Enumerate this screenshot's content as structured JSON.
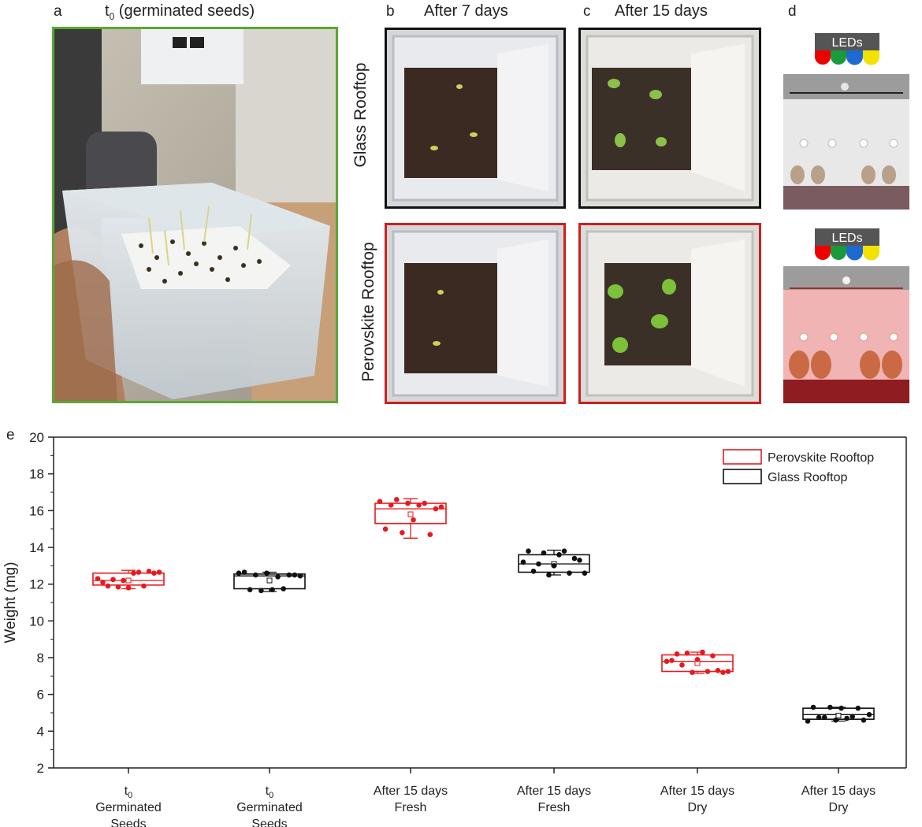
{
  "panels": {
    "a": {
      "letter": "a",
      "title_t": "t",
      "title_sub": "0",
      "title_rest": " (germinated seeds)"
    },
    "b": {
      "letter": "b",
      "title": "After 7 days"
    },
    "c": {
      "letter": "c",
      "title": "After 15 days"
    },
    "d": {
      "letter": "d",
      "led_label": "LEDs"
    },
    "e": {
      "letter": "e"
    }
  },
  "rows": {
    "glass": "Glass Rooftop",
    "perovskite": "Perovskite Rooftop"
  },
  "colors": {
    "perovskite": "#e8191e",
    "glass": "#111111",
    "frame_a": "#5aa832"
  },
  "chart_data": {
    "type": "box",
    "ylabel": "Weight (mg)",
    "ylim": [
      2,
      20
    ],
    "yticks": [
      2,
      4,
      6,
      8,
      10,
      12,
      14,
      16,
      18,
      20
    ],
    "categories": [
      {
        "line1_main": "t",
        "line1_sub": "0",
        "line2": "Germinated",
        "line3": "Seeds"
      },
      {
        "line1_main": "t",
        "line1_sub": "0",
        "line2": "Germinated",
        "line3": "Seeds"
      },
      {
        "line1_main": "After 15 days",
        "line1_sub": "",
        "line2": "Fresh",
        "line3": ""
      },
      {
        "line1_main": "After 15 days",
        "line1_sub": "",
        "line2": "Fresh",
        "line3": ""
      },
      {
        "line1_main": "After 15 days",
        "line1_sub": "",
        "line2": "Dry",
        "line3": ""
      },
      {
        "line1_main": "After 15 days",
        "line1_sub": "",
        "line2": "Dry",
        "line3": ""
      }
    ],
    "legend": [
      {
        "name": "Perovskite Rooftop",
        "color": "#e8191e"
      },
      {
        "name": "Glass Rooftop",
        "color": "#111111"
      }
    ],
    "legend_position": "top-right",
    "boxes": [
      {
        "series": "Perovskite Rooftop",
        "q1": 11.95,
        "median": 12.2,
        "q3": 12.6,
        "whisker_low": 11.75,
        "whisker_high": 12.75,
        "mean": 12.2,
        "points": [
          12.3,
          12.1,
          11.9,
          12.25,
          11.85,
          12.2,
          11.8,
          12.6,
          12.65,
          11.9,
          12.7,
          12.6,
          12.65
        ]
      },
      {
        "series": "Glass Rooftop",
        "q1": 11.75,
        "median": 12.45,
        "q3": 12.55,
        "whisker_low": 11.6,
        "whisker_high": 12.65,
        "mean": 12.2,
        "points": [
          12.6,
          12.65,
          11.7,
          12.5,
          11.65,
          12.6,
          11.7,
          12.4,
          11.75,
          12.5,
          12.5,
          12.45
        ]
      },
      {
        "series": "Perovskite Rooftop",
        "q1": 15.3,
        "median": 16.1,
        "q3": 16.4,
        "whisker_low": 14.5,
        "whisker_high": 16.65,
        "mean": 15.8,
        "points": [
          16.5,
          15.0,
          16.3,
          16.6,
          14.8,
          16.4,
          15.5,
          16.3,
          16.4,
          14.7,
          16.1,
          16.2
        ]
      },
      {
        "series": "Glass Rooftop",
        "q1": 12.65,
        "median": 13.1,
        "q3": 13.6,
        "whisker_low": 12.5,
        "whisker_high": 13.85,
        "mean": 13.1,
        "points": [
          13.2,
          13.8,
          12.7,
          13.1,
          13.7,
          12.5,
          13.0,
          13.6,
          13.8,
          12.6,
          13.4,
          13.3,
          12.6
        ]
      },
      {
        "series": "Perovskite Rooftop",
        "q1": 7.25,
        "median": 7.8,
        "q3": 8.15,
        "whisker_low": 7.15,
        "whisker_high": 8.3,
        "mean": 7.7,
        "points": [
          7.8,
          7.85,
          8.2,
          7.6,
          8.25,
          7.2,
          7.9,
          8.3,
          7.25,
          8.1,
          7.3,
          7.2,
          7.25
        ]
      },
      {
        "series": "Glass Rooftop",
        "q1": 4.65,
        "median": 4.9,
        "q3": 5.25,
        "whisker_low": 4.55,
        "whisker_high": 5.3,
        "mean": 4.85,
        "points": [
          4.55,
          5.3,
          4.75,
          4.75,
          5.3,
          4.6,
          5.25,
          4.7,
          4.8,
          5.25,
          4.6,
          4.9
        ]
      }
    ]
  }
}
